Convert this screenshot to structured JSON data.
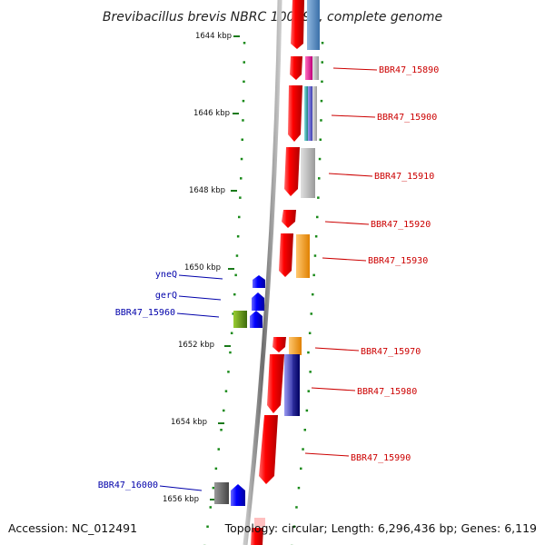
{
  "title": "Brevibacillus brevis NBRC 100599, complete genome",
  "accession": "Accession: NC_012491",
  "topology": "Topology: circular; Length: 6,296,436 bp; Genes: 6,119",
  "scale_labels": [
    "1644 kbp",
    "1646 kbp",
    "1648 kbp",
    "1650 kbp",
    "1652 kbp",
    "1654 kbp",
    "1656 kbp"
  ],
  "genes": [
    {
      "label": "BBR47_15890",
      "side": "right",
      "color": "#cc0000"
    },
    {
      "label": "BBR47_15900",
      "side": "right",
      "color": "#cc0000"
    },
    {
      "label": "BBR47_15910",
      "side": "right",
      "color": "#cc0000"
    },
    {
      "label": "BBR47_15920",
      "side": "right",
      "color": "#cc0000"
    },
    {
      "label": "BBR47_15930",
      "side": "right",
      "color": "#cc0000"
    },
    {
      "label": "yneQ",
      "side": "left",
      "color": "#0000aa"
    },
    {
      "label": "gerQ",
      "side": "left",
      "color": "#0000aa"
    },
    {
      "label": "BBR47_15960",
      "side": "left",
      "color": "#0000aa"
    },
    {
      "label": "BBR47_15970",
      "side": "right",
      "color": "#cc0000"
    },
    {
      "label": "BBR47_15980",
      "side": "right",
      "color": "#cc0000"
    },
    {
      "label": "BBR47_15990",
      "side": "right",
      "color": "#cc0000"
    },
    {
      "label": "BBR47_16000",
      "side": "left",
      "color": "#0000aa"
    }
  ]
}
